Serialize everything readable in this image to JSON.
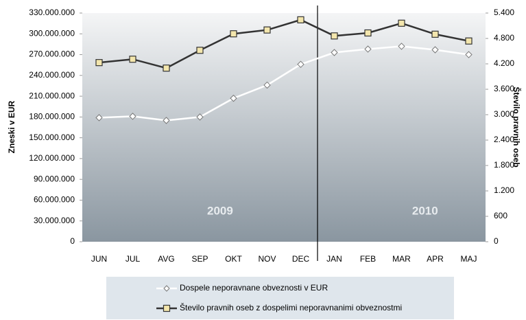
{
  "chart_data": {
    "type": "line",
    "y_label": "Zneski v EUR",
    "y2_label": "Število pravnih oseb",
    "annotations": [
      "2009",
      "2010"
    ],
    "categories": [
      "JUN",
      "JUL",
      "AVG",
      "SEP",
      "OKT",
      "NOV",
      "DEC",
      "JAN",
      "FEB",
      "MAR",
      "APR",
      "MAJ"
    ],
    "series": [
      {
        "name": "Dospele neporavnane obveznosti v EUR",
        "color": "#ffffff",
        "marker": "diamond",
        "axis": "y",
        "values": [
          179000000,
          181000000,
          175000000,
          180000000,
          207000000,
          226000000,
          256000000,
          273000000,
          278000000,
          282000000,
          277000000,
          270000000
        ]
      },
      {
        "name": "Število pravnih oseb z dospelimi neporavnanimi obveznostmi",
        "color": "#333333",
        "marker": "square",
        "axis": "y2",
        "values": [
          4230,
          4310,
          4100,
          4520,
          4910,
          5000,
          5240,
          4860,
          4930,
          5160,
          4900,
          4740
        ]
      }
    ],
    "ylim": [
      0,
      330000000
    ],
    "yticks": [
      0,
      {
        "value": 30000000,
        "label": "30.000.000"
      },
      {
        "value": 60000000,
        "label": "60.000.000"
      },
      {
        "value": 90000000,
        "label": "90.000.000"
      },
      {
        "value": 120000000,
        "label": "120.000.000"
      },
      {
        "value": 150000000,
        "label": "150.000.000"
      },
      {
        "value": 180000000,
        "label": "180.000.000"
      },
      {
        "value": 210000000,
        "label": "210.000.000"
      },
      {
        "value": 240000000,
        "label": "240.000.000"
      },
      {
        "value": 270000000,
        "label": "270.000.000"
      },
      {
        "value": 300000000,
        "label": "300.000.000"
      },
      {
        "value": 330000000,
        "label": "330.000.000"
      }
    ],
    "y2lim": [
      0,
      5400
    ],
    "y2ticks": [
      0,
      600,
      {
        "value": 1200,
        "label": "1.200"
      },
      {
        "value": 1800,
        "label": "1.800"
      },
      {
        "value": 2400,
        "label": "2.400"
      },
      {
        "value": 3000,
        "label": "3.000"
      },
      {
        "value": 3600,
        "label": "3.600"
      },
      {
        "value": 4200,
        "label": "4.200"
      },
      {
        "value": 4800,
        "label": "4.800"
      },
      {
        "value": 5400,
        "label": "5.400"
      }
    ]
  }
}
